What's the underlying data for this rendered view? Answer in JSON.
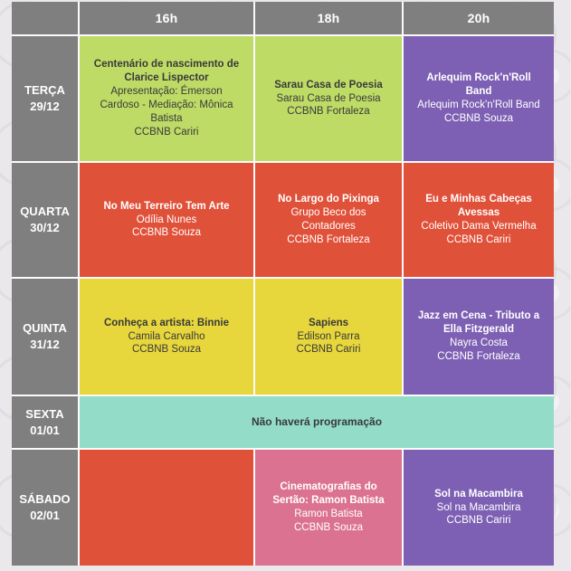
{
  "palette": {
    "gray": {
      "bg": "#7f7f7f",
      "text": "#ffffff"
    },
    "green": {
      "bg": "#bedb66",
      "text": "#3a3a3a"
    },
    "purple": {
      "bg": "#7d60b3",
      "text": "#ffffff"
    },
    "red": {
      "bg": "#e0513a",
      "text": "#ffffff"
    },
    "yellow": {
      "bg": "#e7d73c",
      "text": "#3a3a3a"
    },
    "teal": {
      "bg": "#92dcc8",
      "text": "#3a3a3a"
    },
    "pink": {
      "bg": "#db7292",
      "text": "#ffffff"
    }
  },
  "header": {
    "times": [
      "16h",
      "18h",
      "20h"
    ]
  },
  "rows": [
    {
      "day": "TERÇA",
      "date": "29/12",
      "cells": [
        {
          "color": "green",
          "title": "Centenário de nascimento de Clarice Lispector",
          "line2": "Apresentação: Émerson Cardoso - Mediação: Mônica Batista",
          "line3": "CCBNB Cariri"
        },
        {
          "color": "green",
          "title": "Sarau Casa de Poesia",
          "line2": "Sarau Casa de Poesia",
          "line3": "CCBNB Fortaleza"
        },
        {
          "color": "purple",
          "title": "Arlequim Rock'n'Roll Band",
          "line2": "Arlequim Rock'n'Roll Band",
          "line3": "CCBNB Souza"
        }
      ]
    },
    {
      "day": "QUARTA",
      "date": "30/12",
      "cells": [
        {
          "color": "red",
          "title": "No Meu Terreiro Tem Arte",
          "line2": "Odília Nunes",
          "line3": "CCBNB Souza"
        },
        {
          "color": "red",
          "title": "No Largo do Pixinga",
          "line2": "Grupo Beco dos Contadores",
          "line3": "CCBNB Fortaleza"
        },
        {
          "color": "red",
          "title": "Eu e Minhas Cabeças Avessas",
          "line2": "Coletivo Dama Vermelha",
          "line3": "CCBNB Cariri"
        }
      ]
    },
    {
      "day": "QUINTA",
      "date": "31/12",
      "cells": [
        {
          "color": "yellow",
          "title": "Conheça a artista: Binnie",
          "line2": "Camila Carvalho",
          "line3": "CCBNB Souza"
        },
        {
          "color": "yellow",
          "title": "Sapiens",
          "line2": "Edilson Parra",
          "line3": "CCBNB Cariri"
        },
        {
          "color": "purple",
          "title": "Jazz em Cena - Tributo a Ella Fitzgerald",
          "line2": "Nayra Costa",
          "line3": "CCBNB Fortaleza"
        }
      ]
    },
    {
      "day": "SEXTA",
      "date": "01/01",
      "span_cell": {
        "color": "teal",
        "text": "Não haverá programação"
      }
    },
    {
      "day": "SÁBADO",
      "date": "02/01",
      "cells": [
        {
          "color": "red",
          "title": "",
          "line2": "",
          "line3": ""
        },
        {
          "color": "pink",
          "title": "Cinematografias do Sertão: Ramon Batista",
          "line2": "Ramon Batista",
          "line3": "CCBNB Souza"
        },
        {
          "color": "purple",
          "title": "Sol na Macambira",
          "line2": "Sol na Macambira",
          "line3": "CCBNB Cariri"
        }
      ]
    }
  ]
}
